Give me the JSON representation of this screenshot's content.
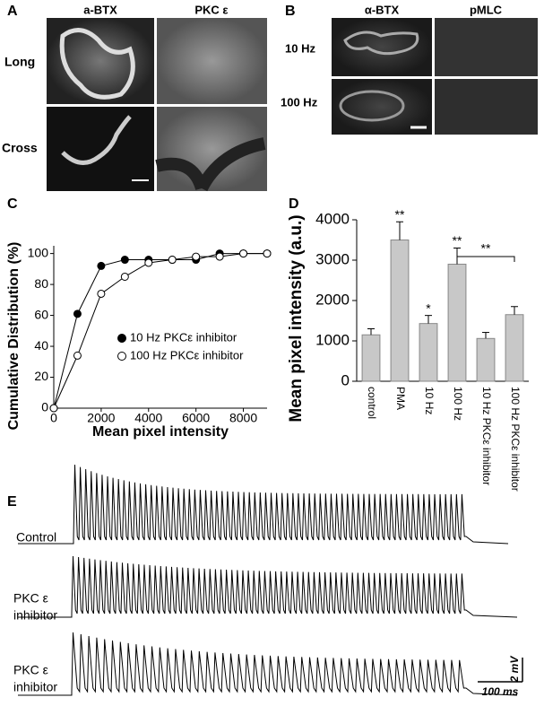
{
  "panels": {
    "A": {
      "label": "A",
      "columns": [
        "a-BTX",
        "PKC ε"
      ],
      "rows": [
        "Long",
        "Cross"
      ]
    },
    "B": {
      "label": "B",
      "columns": [
        "α-BTX",
        "pMLC"
      ],
      "rows": [
        "10 Hz",
        "100 Hz"
      ]
    },
    "C": {
      "label": "C"
    },
    "D": {
      "label": "D"
    },
    "E": {
      "label": "E",
      "rows": [
        [
          "Control"
        ],
        [
          "PKC ε",
          "inhibitor"
        ],
        [
          "PKC ε",
          "inhibitor"
        ]
      ],
      "scale_y": "2 mV",
      "scale_x": "100 ms"
    }
  },
  "chart_data": [
    {
      "type": "line",
      "xlabel": "Mean pixel intensity",
      "ylabel": "Cumulative Distribution (%)",
      "x": [
        0,
        1000,
        2000,
        3000,
        4000,
        5000,
        6000,
        7000,
        8000,
        9000
      ],
      "series": [
        {
          "name": "10 Hz PKCε inhibitor",
          "color": "#000000",
          "values": [
            0,
            61,
            92,
            96,
            96,
            96,
            96,
            100,
            100,
            100
          ]
        },
        {
          "name": "100 Hz PKCε inhibitor",
          "color": "#ffffff",
          "values": [
            0,
            34,
            74,
            85,
            94,
            96,
            98,
            98,
            100,
            100
          ]
        }
      ],
      "xlim": [
        0,
        9000
      ],
      "xticks": [
        0,
        2000,
        4000,
        6000,
        8000
      ],
      "ylim": [
        0,
        105
      ],
      "yticks": [
        0,
        20,
        40,
        60,
        80,
        100
      ]
    },
    {
      "type": "bar",
      "ylabel": "Mean pixel intensity (a.u.)",
      "categories": [
        "control",
        "PMA",
        "10 Hz",
        "100 Hz",
        "10 Hz PKCε inhibitor",
        "100 Hz PKCε inhibitor"
      ],
      "values": [
        1150,
        3500,
        1430,
        2900,
        1060,
        1650
      ],
      "errors": [
        150,
        450,
        200,
        400,
        150,
        200
      ],
      "color": "#c8c8c8",
      "significance": [
        {
          "index": 1,
          "label": "**"
        },
        {
          "index": 2,
          "label": "*"
        },
        {
          "index": 3,
          "label": "**"
        }
      ],
      "bracket": {
        "from": 3,
        "to": 5,
        "label": "**"
      },
      "ylim": [
        0,
        4000
      ],
      "yticks": [
        0,
        1000,
        2000,
        3000,
        4000
      ]
    }
  ]
}
